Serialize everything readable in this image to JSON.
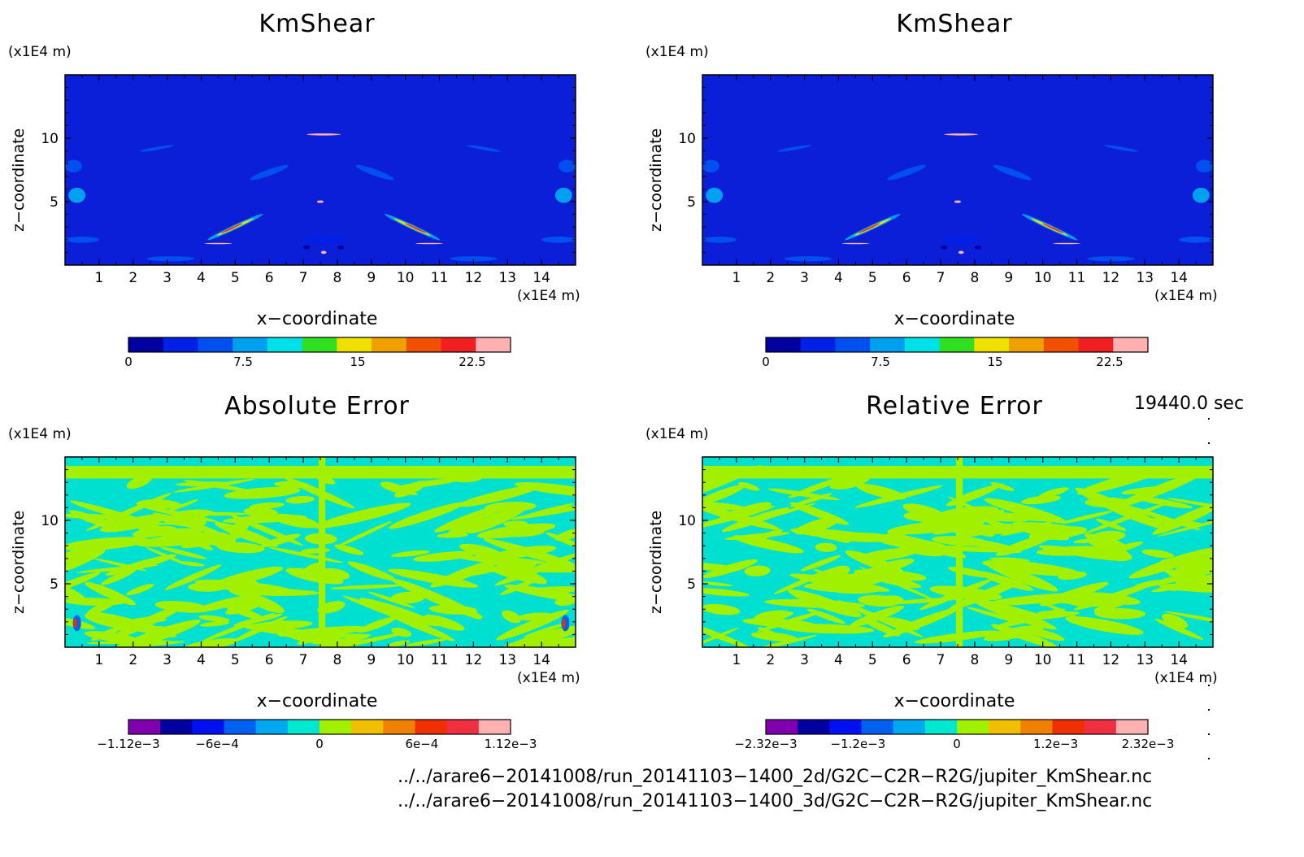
{
  "chart_data": [
    {
      "type": "heatmap",
      "title": "KmShear",
      "xlabel": "x−coordinate",
      "ylabel": "z−coordinate",
      "x_unit": "(x1E4 m)",
      "y_unit": "(x1E4 m)",
      "xlim": [
        0,
        15
      ],
      "ylim": [
        0,
        15
      ],
      "x_ticks": [
        "1",
        "2",
        "3",
        "4",
        "5",
        "6",
        "7",
        "8",
        "9",
        "10",
        "11",
        "12",
        "13",
        "14"
      ],
      "y_ticks": [
        "5",
        "10"
      ],
      "colorbar": {
        "min": 0,
        "max": 25,
        "labels": [
          "0",
          "7.5",
          "15",
          "22.5"
        ],
        "label_values": [
          0,
          7.5,
          15,
          22.5
        ],
        "colors": [
          "#0000a0",
          "#0020e8",
          "#0050f0",
          "#00a0f0",
          "#00e0e8",
          "#30e020",
          "#f0e000",
          "#f0a000",
          "#f05000",
          "#f02020",
          "#ffb0b0"
        ]
      },
      "field": "kmshear",
      "background_color": "#0b1fd8"
    },
    {
      "type": "heatmap",
      "title": "KmShear",
      "xlabel": "x−coordinate",
      "ylabel": "z−coordinate",
      "x_unit": "(x1E4 m)",
      "y_unit": "(x1E4 m)",
      "xlim": [
        0,
        15
      ],
      "ylim": [
        0,
        15
      ],
      "x_ticks": [
        "1",
        "2",
        "3",
        "4",
        "5",
        "6",
        "7",
        "8",
        "9",
        "10",
        "11",
        "12",
        "13",
        "14"
      ],
      "y_ticks": [
        "5",
        "10"
      ],
      "colorbar": {
        "min": 0,
        "max": 25,
        "labels": [
          "0",
          "7.5",
          "15",
          "22.5"
        ],
        "label_values": [
          0,
          7.5,
          15,
          22.5
        ],
        "colors": [
          "#0000a0",
          "#0020e8",
          "#0050f0",
          "#00a0f0",
          "#00e0e8",
          "#30e020",
          "#f0e000",
          "#f0a000",
          "#f05000",
          "#f02020",
          "#ffb0b0"
        ]
      },
      "field": "kmshear",
      "background_color": "#0b1fd8"
    },
    {
      "type": "heatmap",
      "title": "Absolute Error",
      "xlabel": "x−coordinate",
      "ylabel": "z−coordinate",
      "x_unit": "(x1E4 m)",
      "y_unit": "(x1E4 m)",
      "xlim": [
        0,
        15
      ],
      "ylim": [
        0,
        15
      ],
      "x_ticks": [
        "1",
        "2",
        "3",
        "4",
        "5",
        "6",
        "7",
        "8",
        "9",
        "10",
        "11",
        "12",
        "13",
        "14"
      ],
      "y_ticks": [
        "5",
        "10"
      ],
      "colorbar": {
        "min": -0.00112,
        "max": 0.00112,
        "labels": [
          "−1.12e−3",
          "−6e−4",
          "0",
          "6e−4",
          "1.12e−3"
        ],
        "label_values": [
          -0.00112,
          -0.0006,
          0,
          0.0006,
          0.00112
        ],
        "colors": [
          "#8000b0",
          "#0000a0",
          "#0010f0",
          "#0060f0",
          "#00a8f0",
          "#00e8d0",
          "#a0f000",
          "#f0c000",
          "#f08000",
          "#f03000",
          "#f03040",
          "#ffb0b0"
        ]
      },
      "field": "error",
      "background_color": "#00e0d0"
    },
    {
      "type": "heatmap",
      "title": "Relative Error",
      "xlabel": "x−coordinate",
      "ylabel": "z−coordinate",
      "x_unit": "(x1E4 m)",
      "y_unit": "(x1E4 m)",
      "xlim": [
        0,
        15
      ],
      "ylim": [
        0,
        15
      ],
      "x_ticks": [
        "1",
        "2",
        "3",
        "4",
        "5",
        "6",
        "7",
        "8",
        "9",
        "10",
        "11",
        "12",
        "13",
        "14"
      ],
      "y_ticks": [
        "5",
        "10"
      ],
      "colorbar": {
        "min": -0.00232,
        "max": 0.00232,
        "labels": [
          "−2.32e−3",
          "−1.2e−3",
          "0",
          "1.2e−3",
          "2.32e−3"
        ],
        "label_values": [
          -0.00232,
          -0.0012,
          0,
          0.0012,
          0.00232
        ],
        "colors": [
          "#8000b0",
          "#0000a0",
          "#0010f0",
          "#0060f0",
          "#00a8f0",
          "#00e8d0",
          "#a0f000",
          "#f0c000",
          "#f08000",
          "#f03000",
          "#f03040",
          "#ffb0b0"
        ]
      },
      "field": "error",
      "background_color": "#00e0d0"
    }
  ],
  "timestamp": "19440.0 sec",
  "files": [
    "../../arare6−20141008/run_20141103−1400_2d/G2C−C2R−R2G/jupiter_KmShear.nc",
    "../../arare6−20141008/run_20141103−1400_3d/G2C−C2R−R2G/jupiter_KmShear.nc"
  ]
}
